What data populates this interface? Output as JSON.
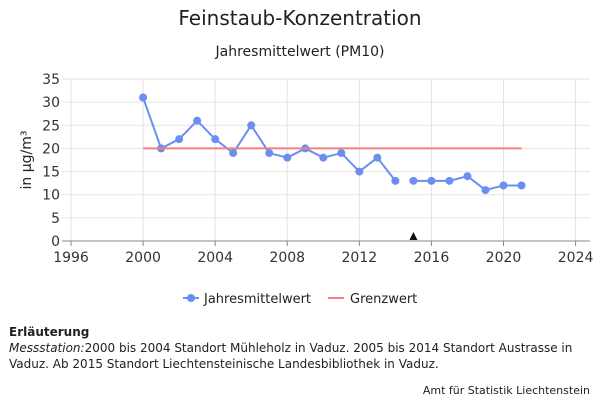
{
  "chart_data": {
    "type": "line",
    "title": "Feinstaub-Konzentration",
    "subtitle": "Jahresmittelwert (PM10)",
    "ylabel": "in µg/m³",
    "xlabel": "",
    "xlim": [
      1995.5,
      2024.8
    ],
    "ylim": [
      0,
      35
    ],
    "x_ticks": [
      1996,
      2000,
      2004,
      2008,
      2012,
      2016,
      2020,
      2024
    ],
    "y_ticks": [
      0,
      5,
      10,
      15,
      20,
      25,
      30,
      35
    ],
    "grid": true,
    "legend_position": "bottom",
    "series": [
      {
        "name": "Jahresmittelwert",
        "color": "#6b8ff0",
        "segments": [
          {
            "x": [
              2000,
              2001,
              2002,
              2003,
              2004,
              2005,
              2006,
              2007,
              2008,
              2009,
              2010,
              2011,
              2012,
              2013,
              2014
            ],
            "y": [
              31,
              20,
              22,
              26,
              22,
              19,
              25,
              19,
              18,
              20,
              18,
              19,
              15,
              18,
              13
            ]
          },
          {
            "x": [
              2015,
              2016,
              2017,
              2018,
              2019,
              2020,
              2021
            ],
            "y": [
              13,
              13,
              13,
              14,
              11,
              12,
              12
            ]
          }
        ]
      },
      {
        "name": "Grenzwert",
        "color": "#f08080",
        "x": [
          2000,
          2021
        ],
        "y": [
          20,
          20
        ]
      }
    ],
    "annotations": [
      {
        "type": "triangle-marker",
        "x": 2015
      }
    ]
  },
  "notes": {
    "title": "Erläuterung",
    "station_label": "Messstation:",
    "text": "2000 bis 2004 Standort Mühleholz in Vaduz. 2005 bis 2014 Standort Austrasse in Vaduz. Ab 2015 Standort Liechtensteinische Landesbibliothek in Vaduz."
  },
  "source": "Amt für Statistik Liechtenstein"
}
